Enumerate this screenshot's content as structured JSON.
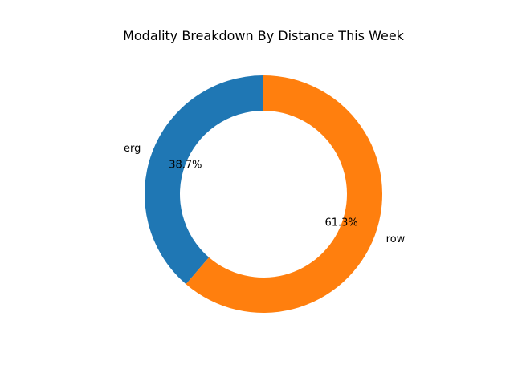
{
  "chart_data": {
    "type": "pie",
    "variant": "donut",
    "title": "Modality Breakdown By Distance This Week",
    "categories": [
      "erg",
      "row"
    ],
    "values": [
      38.7,
      61.3
    ],
    "value_labels": [
      "38.7%",
      "61.3%"
    ],
    "colors": [
      "#1f77b4",
      "#ff7f0e"
    ],
    "start_angle_deg": 90,
    "direction": "counterclockwise",
    "legend": "none"
  }
}
